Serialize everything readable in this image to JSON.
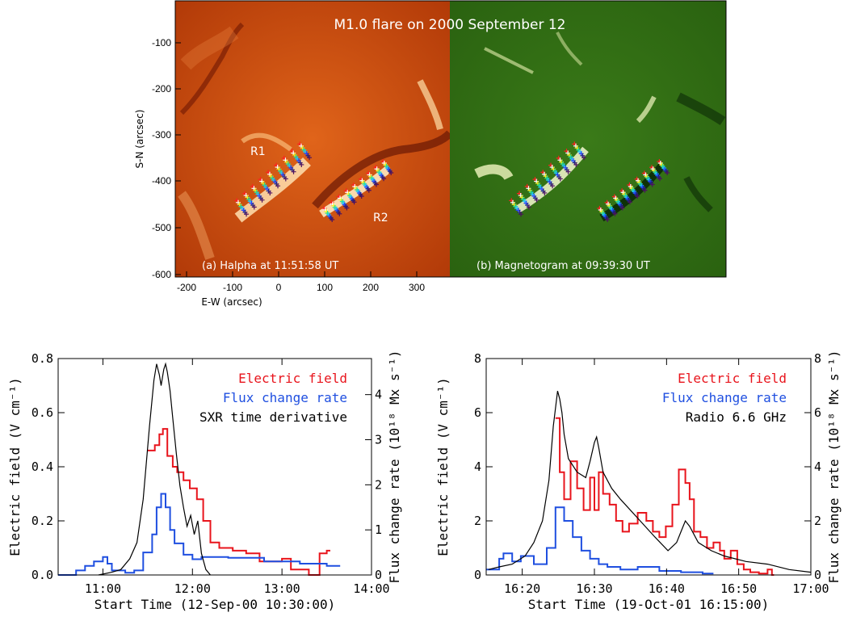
{
  "top": {
    "title": "M1.0 flare on 2000 September 12",
    "ylabel": "S-N (arcsec)",
    "xlabel": "E-W (arcsec)",
    "yticks": [
      "-100",
      "-200",
      "-300",
      "-400",
      "-500",
      "-600"
    ],
    "xticks": [
      "-200",
      "-100",
      "0",
      "100",
      "200",
      "300"
    ],
    "panel_a": "(a) Halpha at 11:51:58 UT",
    "panel_b": "(b) Magnetogram at 09:39:30 UT",
    "region1": "R1",
    "region2": "R2",
    "colors": {
      "halpha_bg": "#c44a10",
      "halpha_bright": "#ffd9a0",
      "mag_bg": "#2f6e14",
      "mag_pos": "#f2f6c0",
      "mag_neg": "#0b2a06"
    }
  },
  "chart_data": [
    {
      "type": "line",
      "xlabel": "Start Time (12-Sep-00 10:30:00)",
      "ylabel": "Electric field (V cm⁻¹)",
      "y2label": "Flux change rate (10¹⁸ Mx s⁻¹)",
      "xlim": [
        10.5,
        14.0
      ],
      "ylim": [
        0,
        0.8
      ],
      "y2lim": [
        0,
        4.8
      ],
      "xticks": [
        11,
        12,
        13,
        14
      ],
      "xtick_labels": [
        "11:00",
        "12:00",
        "13:00",
        "14:00"
      ],
      "yticks": [
        "0.0",
        "0.2",
        "0.4",
        "0.6",
        "0.8"
      ],
      "y2ticks": [
        "0",
        "1",
        "2",
        "3",
        "4"
      ],
      "legend": [
        "Electric field",
        "Flux change rate",
        "SXR time derivative"
      ],
      "legend_position": "top-right",
      "series": [
        {
          "name": "Electric field",
          "color": "#e8141c",
          "axis": "left",
          "step": true,
          "x": [
            11.5,
            11.58,
            11.63,
            11.67,
            11.72,
            11.78,
            11.83,
            11.9,
            11.97,
            12.05,
            12.12,
            12.2,
            12.3,
            12.45,
            12.6,
            12.75,
            12.9,
            13.0,
            13.1,
            13.3,
            13.42,
            13.5
          ],
          "y": [
            0.46,
            0.48,
            0.52,
            0.54,
            0.44,
            0.4,
            0.38,
            0.35,
            0.32,
            0.28,
            0.2,
            0.12,
            0.1,
            0.09,
            0.08,
            0.05,
            0.05,
            0.06,
            0.02,
            0.0,
            0.08,
            0.09
          ]
        },
        {
          "name": "Flux change rate",
          "color": "#1f4fe0",
          "axis": "right",
          "step": true,
          "x": [
            10.5,
            10.7,
            10.8,
            10.9,
            11.0,
            11.05,
            11.1,
            11.25,
            11.35,
            11.45,
            11.55,
            11.6,
            11.65,
            11.7,
            11.75,
            11.8,
            11.9,
            12.0,
            12.1,
            12.4,
            12.8,
            13.2,
            13.5
          ],
          "y": [
            0.0,
            0.1,
            0.2,
            0.3,
            0.4,
            0.25,
            0.1,
            0.05,
            0.1,
            0.5,
            0.9,
            1.5,
            1.8,
            1.5,
            1.0,
            0.7,
            0.45,
            0.35,
            0.4,
            0.38,
            0.3,
            0.25,
            0.2
          ]
        },
        {
          "name": "SXR time derivative",
          "color": "#000000",
          "axis": "left",
          "step": false,
          "x": [
            10.95,
            11.1,
            11.2,
            11.3,
            11.38,
            11.45,
            11.52,
            11.57,
            11.6,
            11.63,
            11.65,
            11.68,
            11.7,
            11.72,
            11.75,
            11.78,
            11.82,
            11.86,
            11.9,
            11.94,
            11.98,
            12.02,
            12.06,
            12.1,
            12.15,
            12.2
          ],
          "y": [
            0.0,
            0.01,
            0.02,
            0.06,
            0.12,
            0.28,
            0.55,
            0.72,
            0.78,
            0.74,
            0.7,
            0.76,
            0.78,
            0.75,
            0.68,
            0.58,
            0.45,
            0.33,
            0.25,
            0.18,
            0.22,
            0.15,
            0.2,
            0.08,
            0.02,
            0.0
          ]
        }
      ]
    },
    {
      "type": "line",
      "xlabel": "Start Time (19-Oct-01 16:15:00)",
      "ylabel": "Electric field (V cm⁻¹)",
      "y2label": "Flux change rate (10¹⁸ Mx s⁻¹)",
      "xlim": [
        16.25,
        17.0
      ],
      "ylim": [
        0,
        8
      ],
      "y2lim": [
        0,
        8
      ],
      "xticks": [
        16.3333,
        16.5,
        16.6667,
        16.8333,
        17.0
      ],
      "xtick_labels": [
        "16:20",
        "16:30",
        "16:40",
        "16:50",
        "17:00"
      ],
      "yticks": [
        "0",
        "2",
        "4",
        "6",
        "8"
      ],
      "y2ticks": [
        "0",
        "2",
        "4",
        "6",
        "8"
      ],
      "legend": [
        "Electric field",
        "Flux change rate",
        "Radio 6.6 GHz"
      ],
      "legend_position": "top-right",
      "series": [
        {
          "name": "Electric field",
          "color": "#e8141c",
          "axis": "left",
          "step": true,
          "x": [
            16.41,
            16.42,
            16.43,
            16.445,
            16.46,
            16.475,
            16.49,
            16.5,
            16.51,
            16.52,
            16.535,
            16.55,
            16.565,
            16.58,
            16.6,
            16.62,
            16.635,
            16.65,
            16.665,
            16.68,
            16.695,
            16.71,
            16.72,
            16.73,
            16.745,
            16.76,
            16.775,
            16.79,
            16.8,
            16.815,
            16.83,
            16.845,
            16.86,
            16.88,
            16.9,
            16.91
          ],
          "y": [
            5.8,
            3.8,
            2.8,
            4.2,
            3.2,
            2.4,
            3.6,
            2.4,
            3.8,
            3.0,
            2.6,
            2.0,
            1.6,
            1.9,
            2.3,
            2.0,
            1.6,
            1.4,
            1.8,
            2.6,
            3.9,
            3.4,
            2.8,
            1.6,
            1.4,
            1.0,
            1.2,
            0.9,
            0.6,
            0.9,
            0.4,
            0.2,
            0.1,
            0.05,
            0.2,
            0.0
          ]
        },
        {
          "name": "Flux change rate",
          "color": "#1f4fe0",
          "axis": "right",
          "step": true,
          "x": [
            16.25,
            16.28,
            16.29,
            16.31,
            16.33,
            16.36,
            16.39,
            16.41,
            16.43,
            16.45,
            16.47,
            16.49,
            16.51,
            16.53,
            16.56,
            16.6,
            16.65,
            16.7,
            16.75
          ],
          "y": [
            0.2,
            0.6,
            0.8,
            0.5,
            0.7,
            0.4,
            1.0,
            2.5,
            2.0,
            1.4,
            0.9,
            0.6,
            0.4,
            0.3,
            0.2,
            0.3,
            0.15,
            0.1,
            0.05
          ]
        },
        {
          "name": "Radio 6.6 GHz",
          "color": "#000000",
          "axis": "left",
          "step": false,
          "x": [
            16.255,
            16.28,
            16.31,
            16.34,
            16.36,
            16.38,
            16.395,
            16.405,
            16.415,
            16.42,
            16.425,
            16.43,
            16.44,
            16.46,
            16.48,
            16.49,
            16.5,
            16.505,
            16.51,
            16.52,
            16.54,
            16.56,
            16.6,
            16.64,
            16.67,
            16.69,
            16.7,
            16.71,
            16.72,
            16.74,
            16.77,
            16.8,
            16.85,
            16.9,
            16.95,
            17.0
          ],
          "y": [
            0.2,
            0.3,
            0.4,
            0.7,
            1.2,
            2.0,
            3.5,
            5.5,
            6.8,
            6.5,
            6.0,
            5.2,
            4.3,
            3.8,
            3.6,
            4.2,
            4.9,
            5.1,
            4.7,
            3.8,
            3.2,
            2.8,
            2.1,
            1.4,
            0.9,
            1.2,
            1.6,
            2.0,
            1.8,
            1.2,
            0.9,
            0.7,
            0.5,
            0.4,
            0.2,
            0.1
          ]
        }
      ]
    }
  ]
}
